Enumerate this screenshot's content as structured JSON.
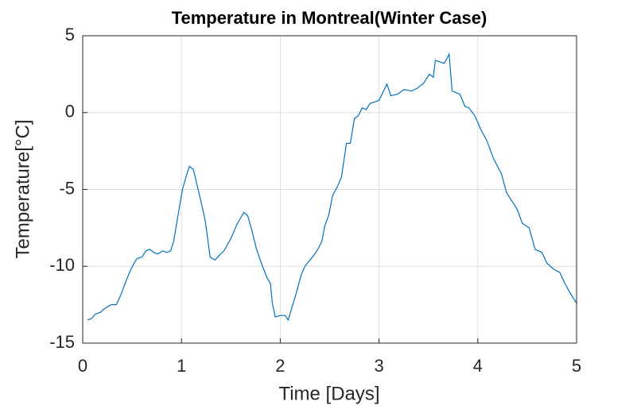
{
  "chart_data": {
    "type": "line",
    "title": "Temperature in Montreal(Winter Case)",
    "x_label": "Time [Days]",
    "y_label": "Temperature[°C]",
    "xlim": [
      0,
      5
    ],
    "ylim": [
      -15,
      5
    ],
    "xticks": [
      0,
      1,
      2,
      3,
      4,
      5
    ],
    "yticks": [
      -15,
      -10,
      -5,
      0,
      5
    ],
    "grid": true,
    "series": [
      {
        "color": "#0072bd",
        "x": [
          0.05,
          0.09,
          0.13,
          0.18,
          0.21,
          0.26,
          0.29,
          0.34,
          0.39,
          0.43,
          0.48,
          0.52,
          0.55,
          0.6,
          0.64,
          0.68,
          0.72,
          0.76,
          0.81,
          0.85,
          0.89,
          0.92,
          0.97,
          1.01,
          1.05,
          1.08,
          1.12,
          1.18,
          1.24,
          1.29,
          1.34,
          1.38,
          1.43,
          1.5,
          1.56,
          1.63,
          1.67,
          1.71,
          1.76,
          1.82,
          1.87,
          1.9,
          1.92,
          1.95,
          2.0,
          2.05,
          2.08,
          2.16,
          2.21,
          2.25,
          2.3,
          2.35,
          2.38,
          2.42,
          2.45,
          2.49,
          2.53,
          2.58,
          2.62,
          2.67,
          2.71,
          2.75,
          2.79,
          2.83,
          2.87,
          2.91,
          2.96,
          3.0,
          3.08,
          3.12,
          3.19,
          3.25,
          3.33,
          3.39,
          3.45,
          3.51,
          3.55,
          3.57,
          3.66,
          3.71,
          3.74,
          3.82,
          3.87,
          3.91,
          3.97,
          4.03,
          4.09,
          4.16,
          4.24,
          4.29,
          4.36,
          4.4,
          4.45,
          4.52,
          4.58,
          4.65,
          4.7,
          4.77,
          4.83,
          4.88,
          4.94,
          5.0
        ],
        "values": [
          -13.5,
          -13.4,
          -13.1,
          -13.0,
          -12.8,
          -12.6,
          -12.5,
          -12.5,
          -11.8,
          -11.1,
          -10.3,
          -9.8,
          -9.5,
          -9.4,
          -9.0,
          -8.9,
          -9.1,
          -9.2,
          -9.0,
          -9.1,
          -9.0,
          -8.4,
          -6.5,
          -5.0,
          -4.1,
          -3.5,
          -3.7,
          -5.3,
          -7.0,
          -9.4,
          -9.6,
          -9.3,
          -9.0,
          -8.2,
          -7.3,
          -6.5,
          -6.7,
          -7.6,
          -8.9,
          -10.0,
          -10.8,
          -11.1,
          -12.4,
          -13.3,
          -13.2,
          -13.2,
          -13.5,
          -11.8,
          -10.6,
          -10.0,
          -9.6,
          -9.2,
          -8.9,
          -8.4,
          -7.4,
          -6.7,
          -5.4,
          -4.8,
          -4.2,
          -2.0,
          -2.0,
          -0.4,
          -0.2,
          0.3,
          0.2,
          0.6,
          0.7,
          0.8,
          1.85,
          1.1,
          1.2,
          1.5,
          1.4,
          1.6,
          1.9,
          2.5,
          2.3,
          3.4,
          3.2,
          3.8,
          1.4,
          1.2,
          0.4,
          0.3,
          -0.2,
          -1.1,
          -1.8,
          -3.0,
          -4.0,
          -5.2,
          -5.9,
          -6.3,
          -7.2,
          -7.5,
          -8.9,
          -9.1,
          -9.8,
          -10.2,
          -10.4,
          -11.1,
          -11.8,
          -12.4
        ]
      }
    ]
  }
}
